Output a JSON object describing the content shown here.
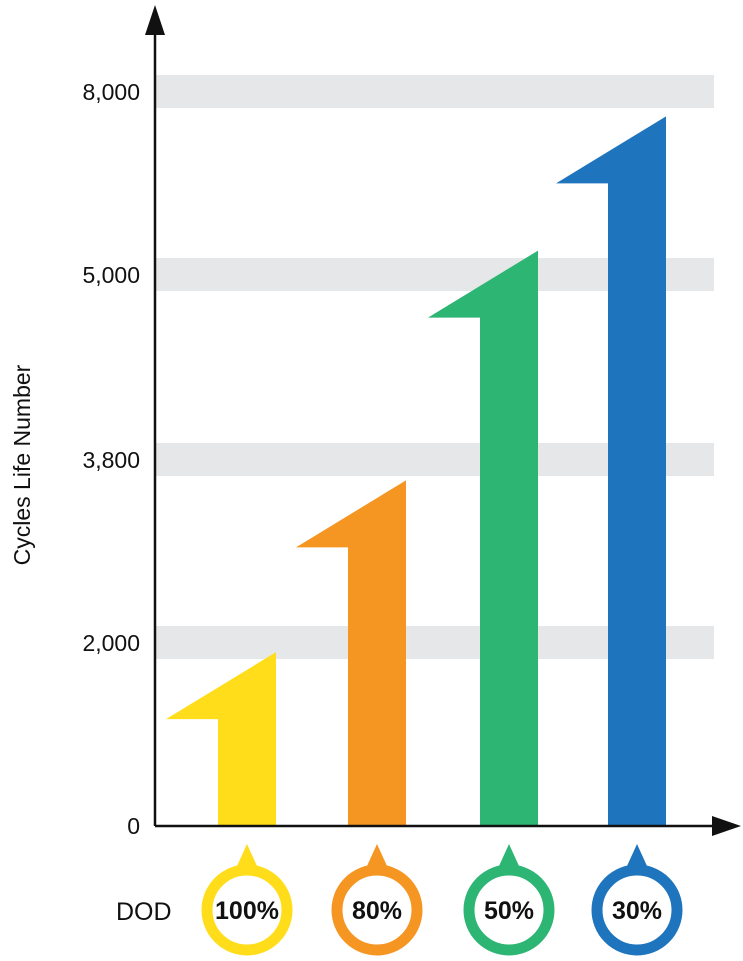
{
  "chart_data": {
    "type": "bar",
    "ylabel": "Cycles Life Number",
    "xlabel": "DOD",
    "y_ticks": [
      {
        "label": "0",
        "value": 0
      },
      {
        "label": "2,000",
        "value": 2000
      },
      {
        "label": "3,800",
        "value": 3800
      },
      {
        "label": "5,000",
        "value": 5000
      },
      {
        "label": "8,000",
        "value": 8000
      }
    ],
    "categories": [
      "100%",
      "80%",
      "50%",
      "30%"
    ],
    "values": [
      1900,
      3600,
      5400,
      7600
    ],
    "colors": [
      "#FFDD1A",
      "#F59522",
      "#2DB574",
      "#1E74BD"
    ],
    "grid_band_color": "#E6E7E8",
    "bar_style": "arrow",
    "grid": true
  }
}
